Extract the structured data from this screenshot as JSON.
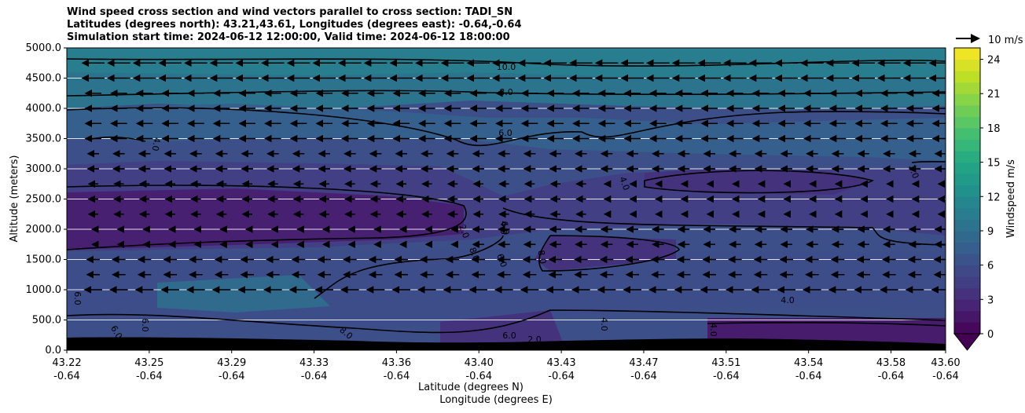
{
  "chart_data": {
    "type": "contour",
    "title_lines": [
      "Wind speed cross section and wind vectors parallel to cross section: TADI_SN",
      "Latitudes (degrees north): 43.21,43.61, Longitudes (degrees east): -0.64,-0.64",
      "Simulation start time: 2024-06-12 12:00:00, Valid time: 2024-06-12 18:00:00"
    ],
    "xlabel_lat": "Latitude (degrees N)",
    "xlabel_lon": "Longitude (degrees E)",
    "ylabel": "Altitude (meters)",
    "x_ticks": [
      {
        "lat": "43.22",
        "lon": "-0.64"
      },
      {
        "lat": "43.25",
        "lon": "-0.64"
      },
      {
        "lat": "43.29",
        "lon": "-0.64"
      },
      {
        "lat": "43.33",
        "lon": "-0.64"
      },
      {
        "lat": "43.36",
        "lon": "-0.64"
      },
      {
        "lat": "43.40",
        "lon": "-0.64"
      },
      {
        "lat": "43.43",
        "lon": "-0.64"
      },
      {
        "lat": "43.47",
        "lon": "-0.64"
      },
      {
        "lat": "43.51",
        "lon": "-0.64"
      },
      {
        "lat": "43.54",
        "lon": "-0.64"
      },
      {
        "lat": "43.58",
        "lon": "-0.64"
      },
      {
        "lat": "43.60",
        "lon": "-0.64"
      }
    ],
    "y_ticks": [
      "0.0",
      "500.0",
      "1000.0",
      "1500.0",
      "2000.0",
      "2500.0",
      "3000.0",
      "3500.0",
      "4000.0",
      "4500.0",
      "5000.0"
    ],
    "ylim": [
      0,
      5000
    ],
    "grid": "horizontal",
    "colorbar": {
      "label": "Windspeed m/s",
      "ticks": [
        "0",
        "3",
        "6",
        "9",
        "12",
        "15",
        "18",
        "21",
        "24"
      ],
      "range": [
        0,
        25
      ],
      "colormap": "viridis",
      "extend": "min"
    },
    "quiver_key": "10 m/s",
    "contour_labels": [
      "10.0",
      "8.0",
      "6.0",
      "4.0",
      "2.0",
      "2.0",
      "4.0",
      "6.0",
      "8.0",
      "4.0",
      "4.0",
      "4.0",
      "6.0",
      "6.0",
      "8.0",
      "6.0",
      "6.0",
      "2.0",
      "4.0",
      "6.0",
      "8.0"
    ],
    "vector_direction": "westward (parallel to cross section, pointing south)"
  },
  "colors": {
    "viridis": [
      "#440154",
      "#482475",
      "#414487",
      "#355f8d",
      "#2a788e",
      "#21918c",
      "#22a884",
      "#44bf70",
      "#7ad151",
      "#bddf26",
      "#fde725"
    ],
    "terrain": "#000000",
    "grid": "#ffffff"
  }
}
